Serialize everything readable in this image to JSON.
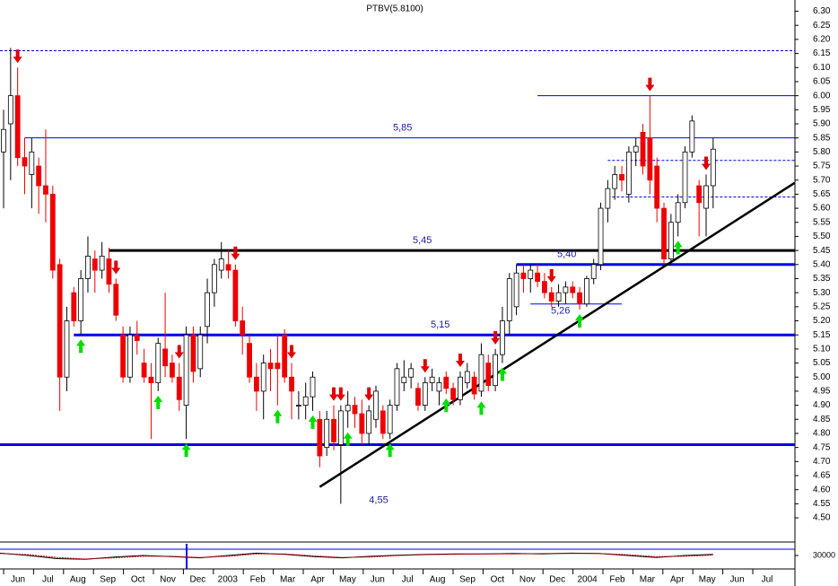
{
  "chart_data": {
    "type": "candlestick",
    "title": "PTBV(5.8100)",
    "open": [
      5.8,
      5.9,
      6.0,
      5.78,
      5.72,
      5.75,
      5.68,
      5.65,
      5.4,
      5.0,
      5.3,
      5.2,
      5.35,
      5.42,
      5.38,
      5.42,
      5.33,
      5.15,
      5.0,
      5.15,
      5.05,
      5.0,
      4.98,
      5.1,
      5.05,
      5.0,
      4.9,
      5.15,
      5.03,
      5.18,
      5.3,
      5.38,
      5.4,
      5.38,
      5.2,
      5.12,
      5.0,
      4.95,
      5.05,
      5.05,
      5.15,
      5.0,
      4.9,
      4.9,
      4.93,
      4.85,
      4.75,
      4.85,
      4.76,
      4.88,
      4.9,
      4.87,
      4.8,
      4.85,
      4.88,
      4.8,
      4.9,
      4.98,
      5.0,
      4.96,
      4.9,
      4.98,
      4.95,
      5.0,
      4.96,
      4.92,
      4.98,
      5.0,
      4.95,
      5.05,
      4.97,
      5.08,
      5.2,
      5.25,
      5.37,
      5.35,
      5.37,
      5.34,
      5.3,
      5.27,
      5.3,
      5.32,
      5.3,
      5.26,
      5.35,
      5.4,
      5.6,
      5.67,
      5.72,
      5.65,
      5.8,
      5.87,
      5.85,
      5.75,
      5.6,
      5.42,
      5.55,
      5.62,
      5.8,
      5.68,
      5.6,
      5.68
    ],
    "high": [
      5.95,
      6.17,
      6.1,
      5.85,
      5.85,
      5.78,
      5.88,
      5.68,
      5.42,
      5.25,
      5.32,
      5.38,
      5.5,
      5.45,
      5.48,
      5.46,
      5.35,
      5.18,
      5.18,
      5.2,
      5.1,
      5.05,
      5.14,
      5.3,
      5.08,
      5.05,
      5.18,
      5.18,
      5.18,
      5.35,
      5.42,
      5.48,
      5.45,
      5.4,
      5.25,
      5.15,
      5.05,
      5.08,
      5.1,
      5.15,
      5.17,
      5.05,
      4.95,
      4.98,
      5.02,
      4.88,
      4.88,
      4.9,
      4.9,
      4.95,
      4.93,
      4.92,
      4.9,
      4.97,
      4.9,
      4.92,
      5.05,
      5.06,
      5.05,
      4.98,
      5.0,
      5.03,
      5.0,
      5.02,
      4.98,
      5.02,
      5.05,
      5.02,
      5.12,
      5.08,
      5.1,
      5.25,
      5.37,
      5.4,
      5.4,
      5.4,
      5.4,
      5.37,
      5.32,
      5.33,
      5.34,
      5.34,
      5.32,
      5.36,
      5.42,
      5.62,
      5.7,
      5.75,
      5.75,
      5.82,
      5.85,
      5.9,
      6.0,
      5.78,
      5.62,
      5.58,
      5.65,
      5.82,
      5.93,
      5.7,
      5.72,
      5.85
    ],
    "low": [
      5.6,
      5.7,
      5.75,
      5.65,
      5.6,
      5.58,
      5.55,
      5.35,
      4.88,
      4.95,
      5.18,
      5.15,
      5.3,
      5.3,
      5.35,
      5.3,
      5.2,
      4.98,
      4.98,
      5.08,
      4.98,
      4.78,
      4.95,
      5.0,
      4.98,
      4.88,
      4.78,
      4.98,
      5.0,
      5.12,
      5.25,
      5.35,
      5.35,
      5.18,
      5.08,
      4.98,
      4.88,
      4.85,
      4.95,
      4.9,
      4.98,
      4.85,
      4.85,
      4.85,
      4.88,
      4.68,
      4.72,
      4.74,
      4.55,
      4.82,
      4.82,
      4.76,
      4.76,
      4.82,
      4.78,
      4.78,
      4.88,
      4.95,
      4.96,
      4.88,
      4.88,
      4.95,
      4.9,
      4.94,
      4.9,
      4.9,
      4.96,
      4.92,
      4.93,
      4.95,
      4.95,
      5.05,
      5.15,
      5.22,
      5.3,
      5.3,
      5.32,
      5.28,
      5.25,
      5.25,
      5.26,
      5.28,
      5.24,
      5.25,
      5.33,
      5.38,
      5.55,
      5.63,
      5.66,
      5.62,
      5.75,
      5.72,
      5.65,
      5.55,
      5.4,
      5.4,
      5.5,
      5.6,
      5.78,
      5.5,
      5.5,
      5.6
    ],
    "close": [
      5.88,
      6.0,
      5.78,
      5.75,
      5.8,
      5.68,
      5.65,
      5.38,
      5.0,
      5.2,
      5.2,
      5.35,
      5.43,
      5.38,
      5.43,
      5.33,
      5.22,
      5.0,
      5.15,
      5.13,
      5.0,
      4.98,
      5.12,
      5.04,
      5.0,
      4.92,
      5.15,
      5.02,
      5.15,
      5.3,
      5.4,
      5.42,
      5.38,
      5.2,
      5.15,
      5.0,
      4.95,
      5.05,
      5.03,
      5.03,
      5.0,
      4.95,
      4.9,
      4.93,
      5.0,
      4.72,
      4.85,
      4.77,
      4.88,
      4.9,
      4.87,
      4.8,
      4.88,
      4.95,
      4.8,
      4.9,
      5.03,
      5.0,
      5.03,
      4.9,
      4.98,
      5.0,
      4.98,
      4.96,
      4.92,
      5.0,
      5.02,
      4.94,
      5.08,
      4.97,
      5.08,
      5.2,
      5.35,
      5.37,
      5.35,
      5.38,
      5.34,
      5.3,
      5.27,
      5.3,
      5.32,
      5.3,
      5.26,
      5.35,
      5.4,
      5.6,
      5.67,
      5.72,
      5.7,
      5.8,
      5.82,
      5.75,
      5.7,
      5.6,
      5.42,
      5.55,
      5.62,
      5.8,
      5.91,
      5.62,
      5.68,
      5.81
    ],
    "up_color": "#ffffff",
    "down_color": "#ee0000",
    "sell_signals": [
      2,
      16,
      25,
      33,
      41,
      47,
      48,
      52,
      60,
      65,
      70,
      78,
      92,
      100
    ],
    "buy_signals": [
      11,
      22,
      26,
      39,
      44,
      49,
      55,
      63,
      68,
      71,
      82,
      96
    ],
    "levels": [
      {
        "value": 6.16,
        "style": "dashed"
      },
      {
        "value": 6.0,
        "style": "thin",
        "from": 76
      },
      {
        "value": 5.85,
        "label": "5,85",
        "style": "thin",
        "from": 3
      },
      {
        "value": 5.77,
        "style": "dashed",
        "from": 86
      },
      {
        "value": 5.64,
        "style": "dashed",
        "from": 86
      },
      {
        "value": 5.45,
        "label": "5,45",
        "style": "black",
        "from": 15
      },
      {
        "value": 5.4,
        "label": "5,40",
        "style": "thick",
        "from": 73
      },
      {
        "value": 5.26,
        "label": "5,26",
        "style": "thin",
        "from": 75,
        "to": 88
      },
      {
        "value": 5.15,
        "label": "5,15",
        "style": "thick",
        "from": 10
      },
      {
        "value": 4.76,
        "style": "thick"
      }
    ],
    "annotations": [
      {
        "label": "4,55",
        "value": 4.55
      }
    ],
    "trendline": {
      "x": [
        45,
        112.6
      ],
      "y": [
        4.61,
        5.69
      ]
    },
    "ylim": [
      4.43,
      6.34
    ],
    "yticks": [
      {
        "value": 6.3,
        "label": "6.30"
      },
      6.25,
      {
        "value": 6.2,
        "label": "6.20"
      },
      6.15,
      {
        "value": 6.1,
        "label": "6.10"
      },
      6.05,
      {
        "value": 6.0,
        "label": "6.00"
      },
      5.95,
      {
        "value": 5.9,
        "label": "5.90"
      },
      5.85,
      {
        "value": 5.8,
        "label": "5.80"
      },
      5.75,
      {
        "value": 5.7,
        "label": "5.70"
      },
      5.65,
      {
        "value": 5.6,
        "label": "5.60"
      },
      5.55,
      {
        "value": 5.5,
        "label": "5.50"
      },
      5.45,
      {
        "value": 5.4,
        "label": "5.40"
      },
      5.35,
      {
        "value": 5.3,
        "label": "5.30"
      },
      5.25,
      {
        "value": 5.2,
        "label": "5.20"
      },
      5.15,
      {
        "value": 5.1,
        "label": "5.10"
      },
      5.05,
      {
        "value": 5.0,
        "label": "5.00"
      },
      4.95,
      {
        "value": 4.9,
        "label": "4.90"
      },
      4.85,
      {
        "value": 4.8,
        "label": "4.80"
      },
      4.75,
      {
        "value": 4.7,
        "label": "4.70"
      },
      4.65,
      {
        "value": 4.6,
        "label": "4.60"
      },
      4.55,
      {
        "value": 4.5,
        "label": "4.50"
      }
    ],
    "categories": [
      "Jun",
      "Jul",
      "Aug",
      "Sep",
      "Oct",
      "Nov",
      "Dec",
      "2003",
      "Feb",
      "Mar",
      "Apr",
      "May",
      "Jun",
      "Jul",
      "Aug",
      "Sep",
      "Oct",
      "Nov",
      "Dec",
      "2004",
      "Feb",
      "Mar",
      "Apr",
      "May",
      "Jun",
      "Jul"
    ],
    "oscillator": {
      "y2lim": [
        0,
        60000
      ],
      "y2ticks": [
        30000
      ],
      "series": [
        {
          "name": "osc",
          "color": "#000000",
          "values": [
            36000,
            30000,
            22000,
            20000,
            26000,
            30000,
            27000,
            24000,
            30000,
            36000,
            33000,
            27000,
            24000,
            28000,
            31000,
            33000,
            34000,
            34000,
            35000,
            34000,
            36000,
            35000,
            30000,
            25000,
            30000,
            33000
          ]
        },
        {
          "name": "signal",
          "color": "#cc0000",
          "values": [
            35000,
            32000,
            25000,
            21000,
            24000,
            28000,
            28000,
            25000,
            28000,
            34000,
            34000,
            29000,
            25000,
            26000,
            30000,
            32000,
            33000,
            34000,
            34000,
            35000,
            35000,
            35000,
            32000,
            27000,
            28000,
            31000
          ]
        }
      ]
    }
  }
}
